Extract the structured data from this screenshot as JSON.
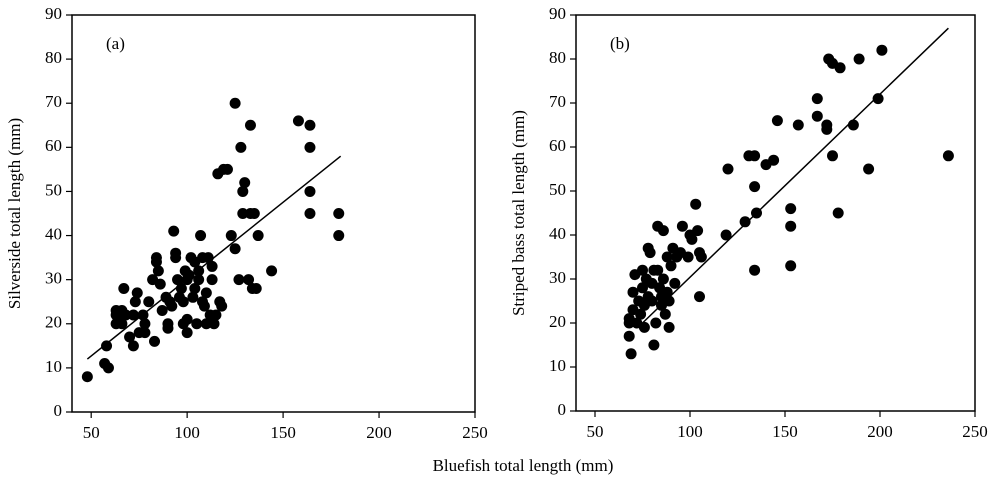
{
  "xlabel": "Bluefish total length (mm)",
  "chart_data": [
    {
      "type": "scatter",
      "panel_label": "(a)",
      "ylabel": "Silverside total length (mm)",
      "color": "#000000",
      "xlim": [
        40,
        250
      ],
      "ylim": [
        0,
        90
      ],
      "xticks": [
        50,
        100,
        150,
        200,
        250
      ],
      "yticks": [
        0,
        10,
        20,
        30,
        40,
        50,
        60,
        70,
        80,
        90
      ],
      "x": [
        48,
        57,
        59,
        58,
        63,
        63,
        63,
        65,
        66,
        67,
        66,
        68,
        70,
        72,
        72,
        73,
        74,
        75,
        77,
        78,
        78,
        80,
        82,
        83,
        84,
        84,
        85,
        86,
        87,
        89,
        90,
        90,
        91,
        92,
        93,
        94,
        94,
        95,
        96,
        97,
        98,
        98,
        99,
        100,
        100,
        100,
        101,
        102,
        103,
        104,
        104,
        105,
        106,
        106,
        107,
        108,
        108,
        109,
        110,
        110,
        111,
        112,
        113,
        113,
        114,
        115,
        116,
        117,
        118,
        119,
        121,
        123,
        125,
        125,
        127,
        128,
        129,
        129,
        130,
        132,
        133,
        133,
        134,
        135,
        136,
        137,
        144,
        158,
        164,
        164,
        164,
        164,
        179,
        179
      ],
      "y": [
        8,
        11,
        10,
        15,
        20,
        22,
        23,
        21,
        20,
        28,
        23,
        22,
        17,
        15,
        22,
        25,
        27,
        18,
        22,
        20,
        18,
        25,
        30,
        16,
        35,
        34,
        32,
        29,
        23,
        26,
        20,
        19,
        25,
        24,
        41,
        36,
        35,
        30,
        26,
        28,
        25,
        20,
        32,
        18,
        21,
        30,
        31,
        35,
        26,
        34,
        28,
        20,
        30,
        32,
        40,
        25,
        35,
        24,
        20,
        27,
        35,
        22,
        33,
        30,
        20,
        22,
        54,
        25,
        24,
        55,
        55,
        40,
        70,
        37,
        30,
        60,
        50,
        45,
        52,
        30,
        45,
        65,
        28,
        45,
        28,
        40,
        32,
        66,
        65,
        60,
        50,
        45,
        45,
        40
      ],
      "fit": {
        "x": [
          48,
          180
        ],
        "y": [
          12,
          58
        ]
      }
    },
    {
      "type": "scatter",
      "panel_label": "(b)",
      "ylabel": "Striped bass total length (mm)",
      "color": "#000000",
      "xlim": [
        40,
        250
      ],
      "ylim": [
        0,
        90
      ],
      "xticks": [
        50,
        100,
        150,
        200,
        250
      ],
      "yticks": [
        0,
        10,
        20,
        30,
        40,
        50,
        60,
        70,
        80,
        90
      ],
      "x": [
        68,
        68,
        68,
        69,
        70,
        70,
        71,
        72,
        73,
        74,
        75,
        75,
        76,
        76,
        77,
        78,
        78,
        79,
        80,
        80,
        81,
        81,
        82,
        83,
        83,
        84,
        85,
        85,
        86,
        86,
        87,
        88,
        88,
        89,
        89,
        90,
        91,
        92,
        93,
        95,
        96,
        99,
        100,
        101,
        103,
        104,
        105,
        105,
        106,
        119,
        120,
        129,
        131,
        134,
        134,
        134,
        135,
        140,
        144,
        146,
        153,
        153,
        153,
        157,
        167,
        167,
        172,
        172,
        173,
        175,
        175,
        178,
        179,
        186,
        189,
        194,
        199,
        201,
        236
      ],
      "y": [
        21,
        20,
        17,
        13,
        23,
        27,
        31,
        20,
        25,
        22,
        28,
        32,
        24,
        19,
        30,
        26,
        37,
        36,
        29,
        25,
        32,
        15,
        20,
        42,
        32,
        28,
        26,
        24,
        41,
        30,
        22,
        27,
        35,
        19,
        25,
        33,
        37,
        29,
        35,
        36,
        42,
        35,
        40,
        39,
        47,
        41,
        26,
        36,
        35,
        40,
        55,
        43,
        58,
        51,
        58,
        32,
        45,
        56,
        57,
        66,
        46,
        42,
        33,
        65,
        67,
        71,
        64,
        65,
        80,
        79,
        58,
        45,
        78,
        65,
        80,
        55,
        71,
        82,
        58
      ],
      "fit": {
        "x": [
          75,
          236
        ],
        "y": [
          20,
          87
        ]
      }
    }
  ]
}
